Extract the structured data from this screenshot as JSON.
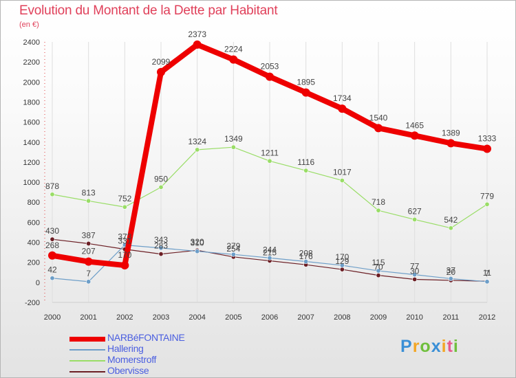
{
  "chart_data": {
    "type": "line",
    "title": "Evolution du Montant de la Dette par Habitant",
    "subtitle": "(en €)",
    "xlabel": "",
    "ylabel": "",
    "ylim": [
      -200,
      2400
    ],
    "yticks": [
      -200,
      0,
      200,
      400,
      600,
      800,
      1000,
      1200,
      1400,
      1600,
      1800,
      2000,
      2200,
      2400
    ],
    "categories": [
      "2000",
      "2001",
      "2002",
      "2003",
      "2004",
      "2005",
      "2006",
      "2007",
      "2008",
      "2009",
      "2010",
      "2011",
      "2012"
    ],
    "series": [
      {
        "name": "NARBéFONTAINE",
        "color": "#ee0000",
        "values": [
          268,
          207,
          170,
          2099,
          2373,
          2224,
          2053,
          1895,
          1734,
          1540,
          1465,
          1389,
          1333
        ]
      },
      {
        "name": "Hallering",
        "color": "#6d9ec8",
        "values": [
          42,
          7,
          373,
          343,
          310,
          279,
          244,
          208,
          170,
          115,
          77,
          37,
          7
        ]
      },
      {
        "name": "Momerstroff",
        "color": "#99dd66",
        "values": [
          878,
          813,
          752,
          950,
          1324,
          1349,
          1211,
          1116,
          1017,
          718,
          627,
          542,
          779
        ]
      },
      {
        "name": "Obervisse",
        "color": "#6b1e24",
        "values": [
          430,
          387,
          331,
          283,
          320,
          254,
          215,
          176,
          129,
          70,
          30,
          20,
          11
        ]
      }
    ]
  },
  "brand": {
    "letters": [
      "P",
      "r",
      "o",
      "x",
      "i",
      "t",
      "i"
    ],
    "colors": [
      "#3a8fd6",
      "#f3a625",
      "#6fbf3d",
      "#3a8fd6",
      "#f3a625",
      "#e85a8c",
      "#6fbf3d"
    ]
  }
}
